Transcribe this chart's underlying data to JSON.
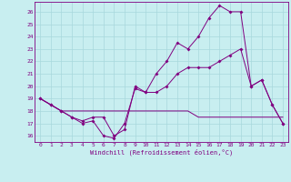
{
  "title": "",
  "xlabel": "Windchill (Refroidissement éolien,°C)",
  "background_color": "#c8eef0",
  "line_color": "#800080",
  "grid_color": "#a8d8dc",
  "xlim": [
    -0.5,
    23.5
  ],
  "ylim": [
    15.5,
    26.8
  ],
  "yticks": [
    16,
    17,
    18,
    19,
    20,
    21,
    22,
    23,
    24,
    25,
    26
  ],
  "xticks": [
    0,
    1,
    2,
    3,
    4,
    5,
    6,
    7,
    8,
    9,
    10,
    11,
    12,
    13,
    14,
    15,
    16,
    17,
    18,
    19,
    20,
    21,
    22,
    23
  ],
  "series1": [
    19,
    18.5,
    18,
    17.5,
    17,
    17.2,
    16,
    15.8,
    17,
    19.8,
    19.5,
    21,
    22,
    23.5,
    23,
    24,
    25.5,
    26.5,
    26,
    26,
    20,
    20.5,
    18.5,
    17
  ],
  "series2": [
    19,
    18.5,
    18,
    17.5,
    17.2,
    17.5,
    17.5,
    16,
    16.5,
    20,
    19.5,
    19.5,
    20,
    21,
    21.5,
    21.5,
    21.5,
    22,
    22.5,
    23,
    20,
    20.5,
    18.5,
    17
  ],
  "series3": [
    19,
    18.5,
    18,
    18,
    18,
    18,
    18,
    18,
    18,
    18,
    18,
    18,
    18,
    18,
    18,
    17.5,
    17.5,
    17.5,
    17.5,
    17.5,
    17.5,
    17.5,
    17.5,
    17.5
  ],
  "figwidth": 3.2,
  "figheight": 2.0,
  "dpi": 100
}
